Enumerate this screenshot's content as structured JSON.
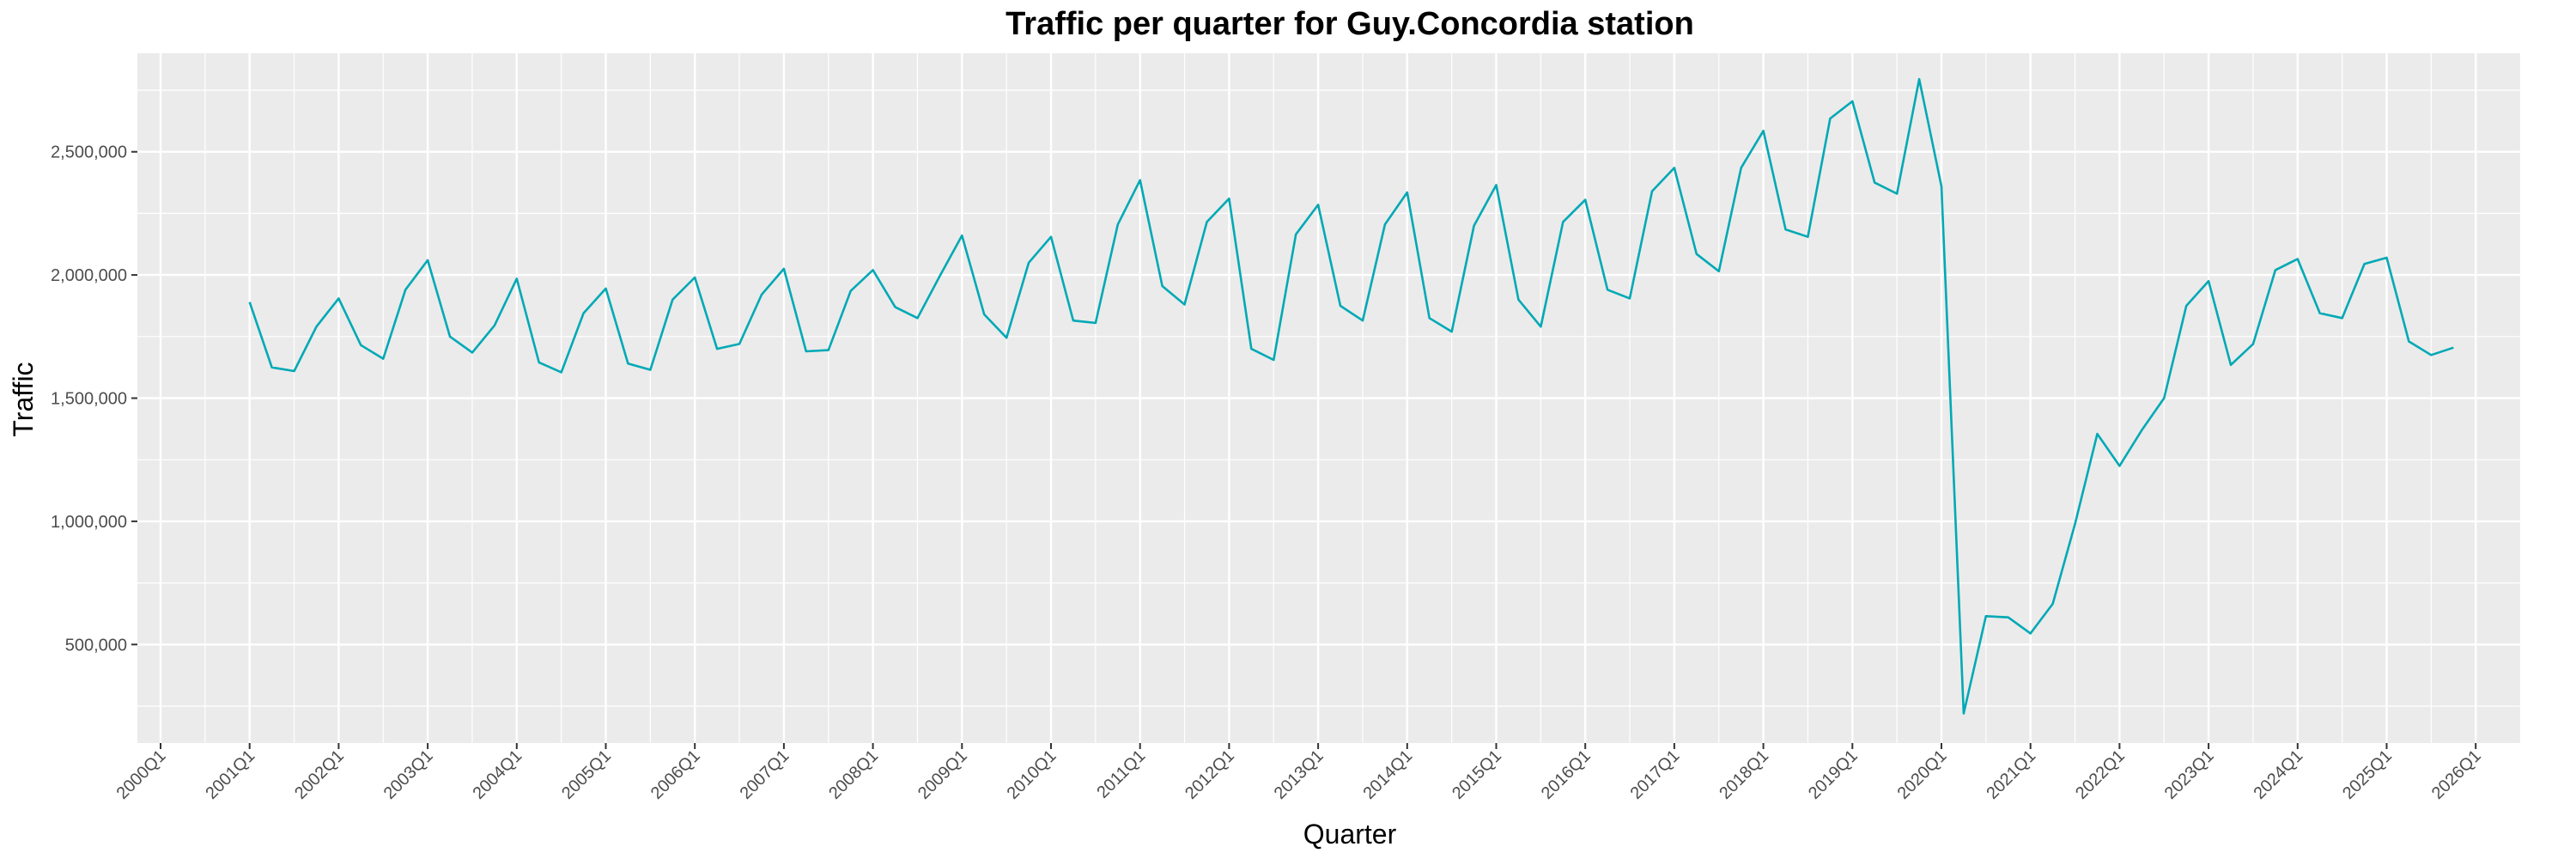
{
  "chart_data": {
    "type": "line",
    "title": "Traffic per quarter for Guy.Concordia station",
    "xlabel": "Quarter",
    "ylabel": "Traffic",
    "ylim": [
      100000,
      2900000
    ],
    "y_ticks": [
      500000,
      1000000,
      1500000,
      2000000,
      2500000
    ],
    "y_tick_labels": [
      "500,000",
      "1,000,000",
      "1,500,000",
      "2,000,000",
      "2,500,000"
    ],
    "x_tick_labels": [
      "2000Q1",
      "2001Q1",
      "2002Q1",
      "2003Q1",
      "2004Q1",
      "2005Q1",
      "2006Q1",
      "2007Q1",
      "2008Q1",
      "2009Q1",
      "2010Q1",
      "2011Q1",
      "2012Q1",
      "2013Q1",
      "2014Q1",
      "2015Q1",
      "2016Q1",
      "2017Q1",
      "2018Q1",
      "2019Q1",
      "2020Q1",
      "2021Q1",
      "2022Q1",
      "2023Q1",
      "2024Q1",
      "2025Q1",
      "2026Q1"
    ],
    "grid": true,
    "line_color": "#00A9B5",
    "panel_color": "#EBEBEB",
    "series": [
      {
        "x": [
          "2001Q1",
          "2001Q2",
          "2001Q3",
          "2001Q4",
          "2002Q1",
          "2002Q2",
          "2002Q3",
          "2002Q4",
          "2003Q1",
          "2003Q2",
          "2003Q3",
          "2003Q4",
          "2004Q1",
          "2004Q2",
          "2004Q3",
          "2004Q4",
          "2005Q1",
          "2005Q2",
          "2005Q3",
          "2005Q4",
          "2006Q1",
          "2006Q2",
          "2006Q3",
          "2006Q4",
          "2007Q1",
          "2007Q2",
          "2007Q3",
          "2007Q4",
          "2008Q1",
          "2008Q2",
          "2008Q3",
          "2008Q4",
          "2009Q1",
          "2009Q2",
          "2009Q3",
          "2009Q4",
          "2010Q1",
          "2010Q2",
          "2010Q3",
          "2010Q4",
          "2011Q1",
          "2011Q2",
          "2011Q3",
          "2011Q4",
          "2012Q1",
          "2012Q2",
          "2012Q3",
          "2012Q4",
          "2013Q1",
          "2013Q2",
          "2013Q3",
          "2013Q4",
          "2014Q1",
          "2014Q2",
          "2014Q3",
          "2014Q4",
          "2015Q1",
          "2015Q2",
          "2015Q3",
          "2015Q4",
          "2016Q1",
          "2016Q2",
          "2016Q3",
          "2016Q4",
          "2017Q1",
          "2017Q2",
          "2017Q3",
          "2017Q4",
          "2018Q1",
          "2018Q2",
          "2018Q3",
          "2018Q4",
          "2019Q1",
          "2019Q2",
          "2019Q3",
          "2019Q4",
          "2020Q1",
          "2020Q2",
          "2020Q3",
          "2020Q4",
          "2021Q1",
          "2021Q2",
          "2021Q3",
          "2021Q4",
          "2022Q1",
          "2022Q2",
          "2022Q3",
          "2022Q4",
          "2023Q1",
          "2023Q2",
          "2023Q3",
          "2023Q4",
          "2024Q1",
          "2024Q2",
          "2024Q3",
          "2024Q4",
          "2025Q1",
          "2025Q2",
          "2025Q3",
          "2025Q4"
        ],
        "values": [
          1890000,
          1625000,
          1610000,
          1790000,
          1905000,
          1715000,
          1660000,
          1940000,
          2060000,
          1750000,
          1685000,
          1795000,
          1985000,
          1645000,
          1605000,
          1845000,
          1945000,
          1640000,
          1615000,
          1900000,
          1990000,
          1700000,
          1720000,
          1920000,
          2025000,
          1690000,
          1695000,
          1935000,
          2020000,
          1870000,
          1825000,
          1995000,
          2160000,
          1840000,
          1745000,
          2050000,
          2155000,
          1815000,
          1805000,
          2205000,
          2385000,
          1955000,
          1880000,
          2215000,
          2310000,
          1700000,
          1655000,
          2165000,
          2285000,
          1875000,
          1815000,
          2205000,
          2335000,
          1825000,
          1770000,
          2200000,
          2365000,
          1900000,
          1790000,
          2215000,
          2305000,
          1940000,
          1905000,
          2340000,
          2435000,
          2085000,
          2015000,
          2435000,
          2585000,
          2185000,
          2155000,
          2635000,
          2705000,
          2375000,
          2330000,
          2795000,
          2360000,
          220000,
          615000,
          610000,
          545000,
          665000,
          990000,
          1355000,
          1225000,
          1370000,
          1500000,
          1875000,
          1975000,
          1635000,
          1720000,
          2020000,
          2065000,
          1845000,
          1825000,
          2045000,
          2070000,
          1730000,
          1675000,
          1705000
        ]
      }
    ]
  }
}
